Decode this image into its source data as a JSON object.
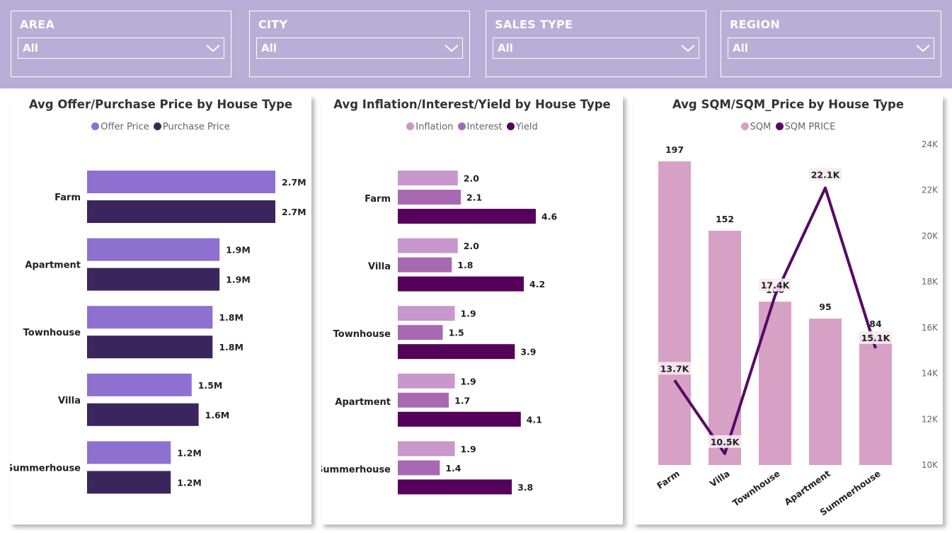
{
  "filters": [
    {
      "label": "AREA",
      "value": "All"
    },
    {
      "label": "CITY",
      "value": "All"
    },
    {
      "label": "SALES TYPE",
      "value": "All"
    },
    {
      "label": "REGION",
      "value": "All"
    }
  ],
  "colors": {
    "filter_bg": "#b9aed5",
    "offer": "#8e70d0",
    "purchase": "#3a265c",
    "inflation": "#c898cc",
    "interest": "#a76ab2",
    "yield": "#55005a",
    "sqm": "#d6a1c4",
    "sqm_price": "#550b64"
  },
  "chart_data": [
    {
      "type": "bar",
      "orientation": "horizontal",
      "title": "Avg Offer/Purchase Price by House Type",
      "legend": "top-center",
      "categories": [
        "Farm",
        "Apartment",
        "Townhouse",
        "Villa",
        "Summerhouse"
      ],
      "series": [
        {
          "name": "Offer Price",
          "values": [
            2700000,
            1900000,
            1800000,
            1500000,
            1200000
          ],
          "labels": [
            "2.7M",
            "1.9M",
            "1.8M",
            "1.5M",
            "1.2M"
          ]
        },
        {
          "name": "Purchase Price",
          "values": [
            2700000,
            1900000,
            1800000,
            1600000,
            1200000
          ],
          "labels": [
            "2.7M",
            "1.9M",
            "1.8M",
            "1.6M",
            "1.2M"
          ]
        }
      ]
    },
    {
      "type": "bar",
      "orientation": "horizontal",
      "title": "Avg Inflation/Interest/Yield by House Type",
      "legend": "top-center",
      "categories": [
        "Farm",
        "Villa",
        "Townhouse",
        "Apartment",
        "Summerhouse"
      ],
      "series": [
        {
          "name": "Inflation",
          "values": [
            2.0,
            2.0,
            1.9,
            1.9,
            1.9
          ],
          "labels": [
            "2.0",
            "2.0",
            "1.9",
            "1.9",
            "1.9"
          ]
        },
        {
          "name": "Interest",
          "values": [
            2.1,
            1.8,
            1.5,
            1.7,
            1.4
          ],
          "labels": [
            "2.1",
            "1.8",
            "1.5",
            "1.7",
            "1.4"
          ]
        },
        {
          "name": "Yield",
          "values": [
            4.6,
            4.2,
            3.9,
            4.1,
            3.8
          ],
          "labels": [
            "4.6",
            "4.2",
            "3.9",
            "4.1",
            "3.8"
          ]
        }
      ]
    },
    {
      "type": "bar",
      "combo": "bar+line",
      "title": "Avg SQM/SQM_Price by House Type",
      "legend": "top-center",
      "categories": [
        "Farm",
        "Villa",
        "Townhouse",
        "Apartment",
        "Summerhouse"
      ],
      "series": [
        {
          "name": "SQM",
          "type": "bar",
          "values": [
            197,
            152,
            106,
            95,
            84
          ],
          "labels": [
            "197",
            "152",
            "106",
            "95",
            "84"
          ]
        },
        {
          "name": "SQM PRICE",
          "type": "line",
          "axis": "right",
          "values": [
            13700,
            10500,
            17400,
            22100,
            15100
          ],
          "labels": [
            "13.7K",
            "10.5K",
            "17.4K",
            "22.1K",
            "15.1K"
          ]
        }
      ],
      "y2lim": [
        10000,
        24000
      ],
      "y2ticks": [
        "10K",
        "12K",
        "14K",
        "16K",
        "18K",
        "20K",
        "22K",
        "24K"
      ],
      "y2tick_values": [
        10000,
        12000,
        14000,
        16000,
        18000,
        20000,
        22000,
        24000
      ]
    }
  ]
}
